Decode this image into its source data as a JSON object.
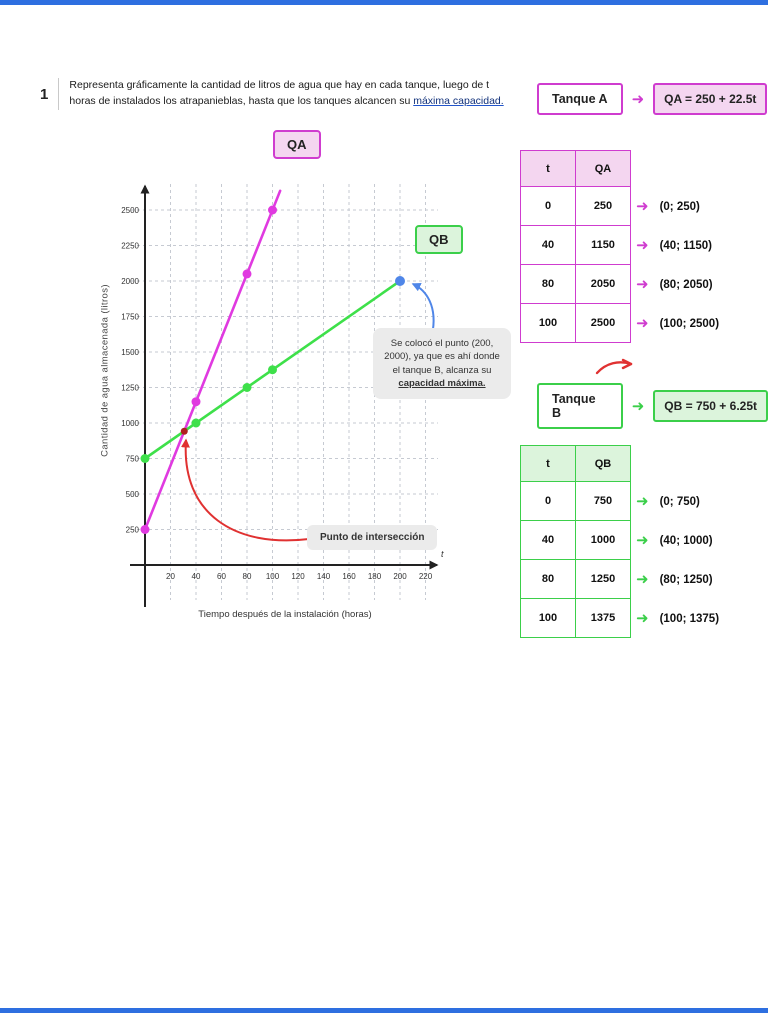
{
  "icons": {
    "arrow_right": "➜"
  },
  "colors": {
    "magenta": "#cf3ccf",
    "pink_fill": "#f4d6f0",
    "green": "#3bcf4a",
    "green_fill": "#dcf4dc",
    "blue": "#4f86e8",
    "red": "#e03131",
    "dark_red": "#b02020",
    "note_bg": "#ebebeb",
    "grid": "#c6cad2",
    "axis": "#222222",
    "bar": "#2e6fe0"
  },
  "problem": {
    "number": "1",
    "text": "Representa gráficamente la cantidad de litros de agua que hay en cada tanque, luego de t horas de instalados los atrapanieblas, hasta que los tanques alcancen su ",
    "underlined": "máxima capacidad."
  },
  "chart_data": {
    "type": "line",
    "title": "",
    "xlabel": "Tiempo después de la instalación (horas)",
    "ylabel": "Cantidad de agua almacenada (litros)",
    "x_var": "t",
    "xlim": [
      0,
      235
    ],
    "ylim": [
      0,
      2700
    ],
    "grid": true,
    "x_ticks": [
      20,
      40,
      60,
      80,
      100,
      120,
      140,
      160,
      180,
      200,
      220
    ],
    "y_ticks": [
      250,
      500,
      750,
      1000,
      1250,
      1500,
      1750,
      2000,
      2250,
      2500
    ],
    "series": [
      {
        "name": "QA",
        "color": "#e03ae0",
        "equation": "QA = 250 + 22.5t",
        "line": [
          [
            0,
            250
          ],
          [
            106,
            2635
          ]
        ],
        "points": [
          [
            0,
            250
          ],
          [
            40,
            1150
          ],
          [
            80,
            2050
          ],
          [
            100,
            2500
          ]
        ]
      },
      {
        "name": "QB",
        "color": "#3ee04a",
        "equation": "QB = 750 + 6.25t",
        "line": [
          [
            0,
            750
          ],
          [
            200,
            2000
          ]
        ],
        "points": [
          [
            0,
            750
          ],
          [
            40,
            1000
          ],
          [
            80,
            1250
          ],
          [
            100,
            1375
          ]
        ],
        "end_point": {
          "point": [
            200,
            2000
          ],
          "color": "#4f86e8"
        }
      }
    ],
    "intersection_point": [
      30.8,
      942
    ],
    "annotations": [
      {
        "name": "max-capacity-note",
        "text": "Se colocó el punto (200, 2000), ya que es ahí donde el tanque B, alcanza su ",
        "underlined": "capacidad máxima.",
        "points_to": [
          200,
          2000
        ],
        "arrow_color": "#4f86e8"
      },
      {
        "name": "intersection-note",
        "text": "Punto de intersección",
        "points_to": [
          30.8,
          942
        ],
        "arrow_color": "#e03131"
      }
    ]
  },
  "tanque_a": {
    "title": "Tanque A",
    "formula": "QA = 250 + 22.5t",
    "table": {
      "headers": [
        "t",
        "QA"
      ],
      "rows": [
        {
          "t": "0",
          "q": "250"
        },
        {
          "t": "40",
          "q": "1150"
        },
        {
          "t": "80",
          "q": "2050"
        },
        {
          "t": "100",
          "q": "2500"
        }
      ]
    },
    "coords": [
      "(0; 250)",
      "(40; 1150)",
      "(80; 2050)",
      "(100; 2500)"
    ]
  },
  "tanque_b": {
    "title": "Tanque B",
    "formula": "QB = 750 + 6.25t",
    "table": {
      "headers": [
        "t",
        "QB"
      ],
      "rows": [
        {
          "t": "0",
          "q": "750"
        },
        {
          "t": "40",
          "q": "1000"
        },
        {
          "t": "80",
          "q": "1250"
        },
        {
          "t": "100",
          "q": "1375"
        }
      ]
    },
    "coords": [
      "(0; 750)",
      "(40; 1000)",
      "(80; 1250)",
      "(100; 1375)"
    ]
  }
}
